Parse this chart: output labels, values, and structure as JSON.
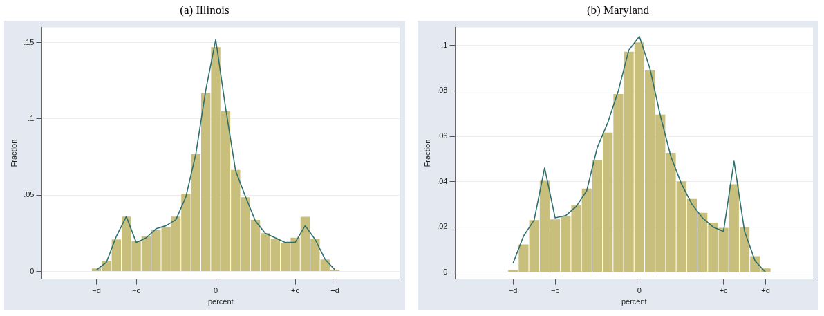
{
  "chart_data": [
    {
      "type": "bar",
      "title": "(a) Illinois",
      "xlabel": "percent",
      "ylabel": "Fraction",
      "color": "#c9bf7c",
      "categories": [
        null,
        null,
        null,
        null,
        null,
        "−d",
        null,
        null,
        null,
        "−c",
        null,
        null,
        null,
        null,
        null,
        null,
        null,
        "0",
        null,
        null,
        null,
        null,
        null,
        null,
        null,
        "+c",
        null,
        null,
        null,
        "+d",
        null,
        null,
        null,
        null,
        null,
        null
      ],
      "values": [
        null,
        null,
        null,
        null,
        null,
        0.002,
        0.007,
        0.021,
        0.036,
        0.02,
        0.023,
        0.027,
        0.029,
        0.036,
        0.051,
        0.077,
        0.117,
        0.147,
        0.105,
        0.0665,
        0.0486,
        0.0338,
        0.0251,
        0.0214,
        0.0184,
        0.0221,
        0.0358,
        0.0214,
        0.0079,
        0.001,
        null,
        null,
        null,
        null,
        null,
        null
      ],
      "series": [
        {
          "type": "line",
          "color": "#2f6f6e",
          "values": [
            null,
            null,
            null,
            null,
            null,
            0.001,
            0.006,
            0.023,
            0.036,
            0.019,
            0.022,
            0.028,
            0.03,
            0.034,
            0.049,
            0.077,
            0.119,
            0.152,
            0.107,
            0.066,
            0.049,
            0.033,
            0.025,
            0.022,
            0.019,
            0.019,
            0.03,
            0.021,
            0.008,
            0.001,
            null,
            null,
            null,
            null,
            null,
            null
          ]
        }
      ],
      "ylim": [
        -0.005,
        0.16
      ],
      "yticks": [
        0,
        {
          "value": 0.05,
          "label": ".05"
        },
        {
          "value": 0.1,
          "label": ".1"
        },
        {
          "value": 0.15,
          "label": ".15"
        }
      ],
      "grid": "y"
    },
    {
      "type": "bar",
      "title": "(b) Maryland",
      "xlabel": "percent",
      "ylabel": "Fraction",
      "color": "#c9bf7c",
      "categories": [
        null,
        null,
        null,
        null,
        null,
        "−d",
        null,
        null,
        null,
        "−c",
        null,
        null,
        null,
        null,
        null,
        null,
        null,
        "0",
        null,
        null,
        null,
        null,
        null,
        null,
        null,
        "+c",
        null,
        null,
        null,
        "+d",
        null,
        null,
        null,
        null
      ],
      "values": [
        null,
        null,
        null,
        null,
        null,
        0.001,
        0.0123,
        0.023,
        0.0403,
        0.0233,
        0.0248,
        0.0297,
        0.0369,
        0.0493,
        0.0616,
        0.0786,
        0.0973,
        0.1014,
        0.0893,
        0.0695,
        0.0527,
        0.0401,
        0.0323,
        0.0262,
        0.0219,
        0.0196,
        0.0388,
        0.0198,
        0.0071,
        0.0017,
        null,
        null,
        null,
        null
      ],
      "series": [
        {
          "type": "line",
          "color": "#2f6f6e",
          "values": [
            null,
            null,
            null,
            null,
            null,
            0.004,
            0.016,
            0.023,
            0.046,
            0.024,
            0.025,
            0.029,
            0.036,
            0.055,
            0.066,
            0.08,
            0.098,
            0.104,
            0.09,
            0.069,
            0.051,
            0.039,
            0.03,
            0.024,
            0.02,
            0.018,
            0.049,
            0.018,
            0.005,
            0,
            null,
            null,
            null,
            null
          ]
        }
      ],
      "ylim": [
        -0.003,
        0.108
      ],
      "yticks": [
        0,
        {
          "value": 0.02,
          "label": ".02"
        },
        {
          "value": 0.04,
          "label": ".04"
        },
        {
          "value": 0.06,
          "label": ".06"
        },
        {
          "value": 0.08,
          "label": ".08"
        },
        {
          "value": 0.1,
          "label": ".1"
        }
      ],
      "grid": "y"
    }
  ]
}
